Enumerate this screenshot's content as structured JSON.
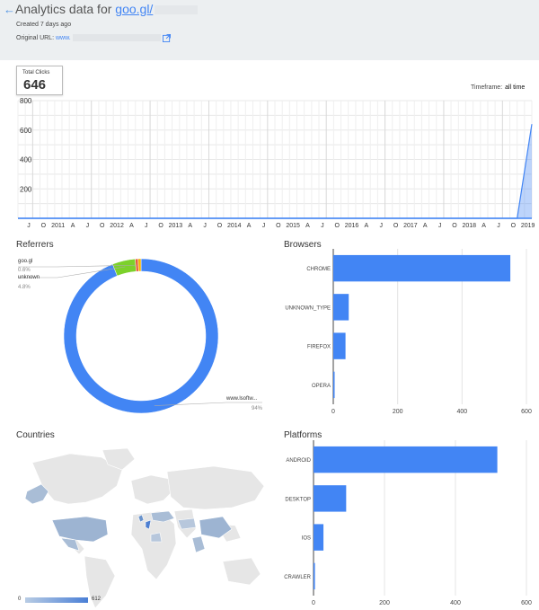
{
  "header": {
    "back_icon": "back-arrow-icon",
    "title_prefix": "Analytics data for ",
    "short_url": "goo.gl/",
    "created": "Created 7 days ago",
    "original_label": "Original URL: ",
    "original_url": "www.",
    "external_icon": "external-link-icon"
  },
  "summary": {
    "total_clicks_label": "Total Clicks",
    "total_clicks": "646",
    "timeframe_label": "Timeframe:",
    "timeframe_value": "all time"
  },
  "colors": {
    "accent": "#4285f4",
    "header_bg": "#eceff1",
    "pie_green": "#7cd12b",
    "pie_red": "#e65a3b"
  },
  "chart_data": [
    {
      "type": "area",
      "title": "",
      "x_tick_labels": [
        "J",
        "O",
        "2011",
        "A",
        "J",
        "O",
        "2012",
        "A",
        "J",
        "O",
        "2013",
        "A",
        "J",
        "O",
        "2014",
        "A",
        "J",
        "O",
        "2015",
        "A",
        "J",
        "O",
        "2016",
        "A",
        "J",
        "O",
        "2017",
        "A",
        "J",
        "O",
        "2018",
        "A",
        "J",
        "O",
        "2019"
      ],
      "y_ticks": [
        200,
        400,
        600,
        800
      ],
      "ylim": [
        0,
        800
      ],
      "series": [
        {
          "values": [
            0,
            0,
            0,
            0,
            0,
            0,
            0,
            0,
            0,
            0,
            0,
            0,
            0,
            0,
            0,
            0,
            0,
            0,
            0,
            0,
            0,
            0,
            0,
            0,
            0,
            0,
            0,
            0,
            0,
            0,
            0,
            0,
            0,
            0,
            0,
            640
          ]
        }
      ],
      "grid": true
    },
    {
      "type": "pie",
      "title": "Referrers",
      "donut": true,
      "slices": [
        {
          "label": "www.lsoftw...",
          "value": 94,
          "display": "94%",
          "color": "#4285f4"
        },
        {
          "label": "unknown",
          "value": 4.8,
          "display": "4.8%",
          "color": "#7cd12b"
        },
        {
          "label": "goo.gl",
          "value": 0.6,
          "display": "0.6%",
          "color": "#e65a3b"
        },
        {
          "label": "",
          "value": 0.6,
          "display": "",
          "color": "#f4b400"
        }
      ]
    },
    {
      "type": "bar",
      "orientation": "horizontal",
      "title": "Browsers",
      "categories": [
        "CHROME",
        "UNKNOWN_TYPE",
        "FIREFOX",
        "OPERA"
      ],
      "values": [
        550,
        48,
        38,
        4
      ],
      "x_ticks": [
        0,
        200,
        400,
        600
      ],
      "xlim": [
        0,
        600
      ]
    },
    {
      "type": "bar",
      "orientation": "horizontal",
      "title": "Platforms",
      "categories": [
        "ANDROID",
        "DESKTOP",
        "IOS",
        "CRAWLER"
      ],
      "values": [
        518,
        92,
        28,
        4
      ],
      "x_ticks": [
        0,
        200,
        400,
        600
      ],
      "xlim": [
        0,
        600
      ]
    },
    {
      "type": "map",
      "title": "Countries",
      "legend_min": "0",
      "legend_max": "612"
    }
  ]
}
